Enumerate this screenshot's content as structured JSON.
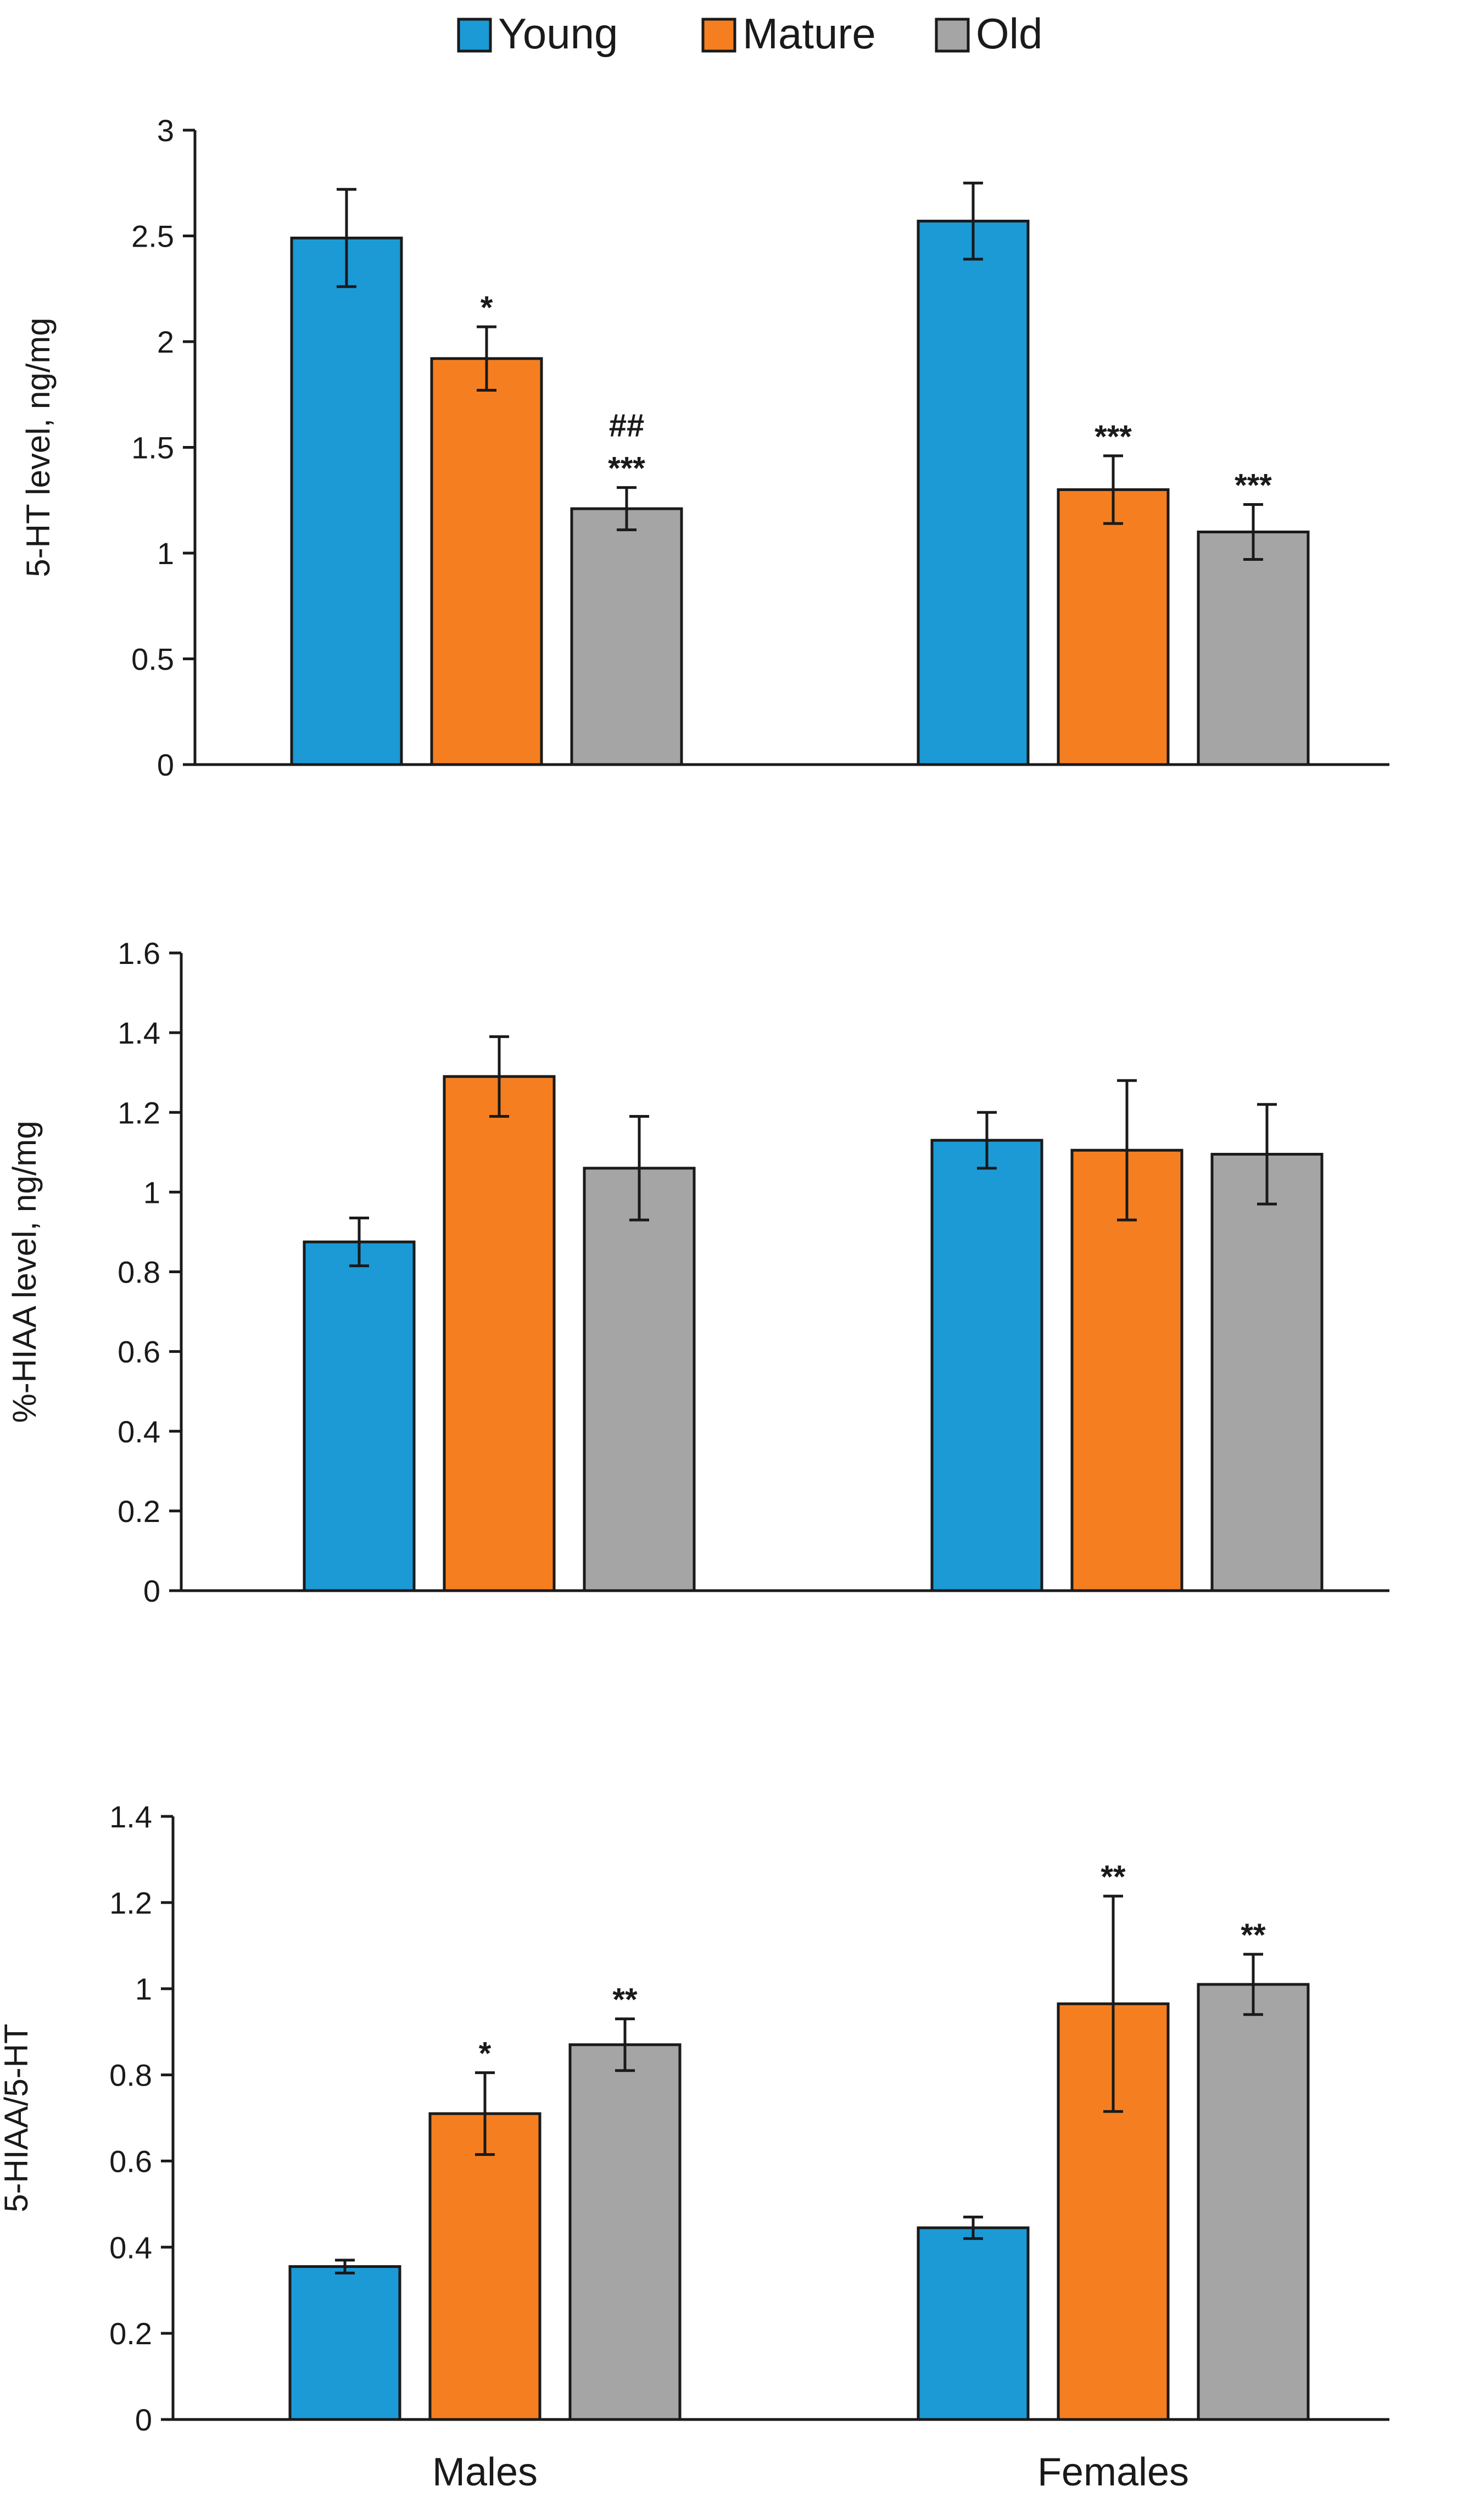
{
  "legend": {
    "position": "top-center",
    "items": [
      {
        "label": "Young",
        "color": "#1b9ad6"
      },
      {
        "label": "Mature",
        "color": "#f57f20"
      },
      {
        "label": "Old",
        "color": "#a5a5a5"
      }
    ]
  },
  "chart_data": [
    {
      "type": "bar",
      "ylabel": "5-HT level, ng/mg",
      "ylim": [
        0,
        3
      ],
      "yticks": [
        "0",
        "0.5",
        "1",
        "1.5",
        "2",
        "2.5",
        "3"
      ],
      "categories": [
        "Males",
        "Females"
      ],
      "show_category_labels": false,
      "series": [
        {
          "name": "Young",
          "values": [
            2.49,
            2.57
          ],
          "errors": [
            0.23,
            0.18
          ],
          "annotations": [
            [],
            []
          ]
        },
        {
          "name": "Mature",
          "values": [
            1.92,
            1.3
          ],
          "errors": [
            0.15,
            0.16
          ],
          "annotations": [
            [
              "*"
            ],
            [
              "***"
            ]
          ]
        },
        {
          "name": "Old",
          "values": [
            1.21,
            1.1
          ],
          "errors": [
            0.1,
            0.13
          ],
          "annotations": [
            [
              "##",
              "***"
            ],
            [
              "***"
            ]
          ]
        }
      ]
    },
    {
      "type": "bar",
      "ylabel": "%-HIAA level, ng/mg",
      "ylim": [
        0,
        1.6
      ],
      "yticks": [
        "0",
        "0.2",
        "0.4",
        "0.6",
        "0.8",
        "1",
        "1.2",
        "1.4",
        "1.6"
      ],
      "categories": [
        "Males",
        "Females"
      ],
      "show_category_labels": false,
      "series": [
        {
          "name": "Young",
          "values": [
            0.875,
            1.13
          ],
          "errors": [
            0.06,
            0.07
          ],
          "annotations": [
            [],
            []
          ]
        },
        {
          "name": "Mature",
          "values": [
            1.29,
            1.105
          ],
          "errors": [
            0.1,
            0.175
          ],
          "annotations": [
            [],
            []
          ]
        },
        {
          "name": "Old",
          "values": [
            1.06,
            1.095
          ],
          "errors": [
            0.13,
            0.125
          ],
          "annotations": [
            [],
            []
          ]
        }
      ]
    },
    {
      "type": "bar",
      "ylabel": "5-HIAA/5-HT",
      "ylim": [
        0,
        1.4
      ],
      "yticks": [
        "0",
        "0.2",
        "0.4",
        "0.6",
        "0.8",
        "1",
        "1.2",
        "1.4"
      ],
      "categories": [
        "Males",
        "Females"
      ],
      "show_category_labels": true,
      "series": [
        {
          "name": "Young",
          "values": [
            0.355,
            0.445
          ],
          "errors": [
            0.015,
            0.025
          ],
          "annotations": [
            [],
            []
          ]
        },
        {
          "name": "Mature",
          "values": [
            0.71,
            0.965
          ],
          "errors": [
            0.095,
            0.25
          ],
          "annotations": [
            [
              "*"
            ],
            [
              "**"
            ]
          ]
        },
        {
          "name": "Old",
          "values": [
            0.87,
            1.01
          ],
          "errors": [
            0.06,
            0.07
          ],
          "annotations": [
            [
              "**"
            ],
            [
              "**"
            ]
          ]
        }
      ]
    }
  ]
}
